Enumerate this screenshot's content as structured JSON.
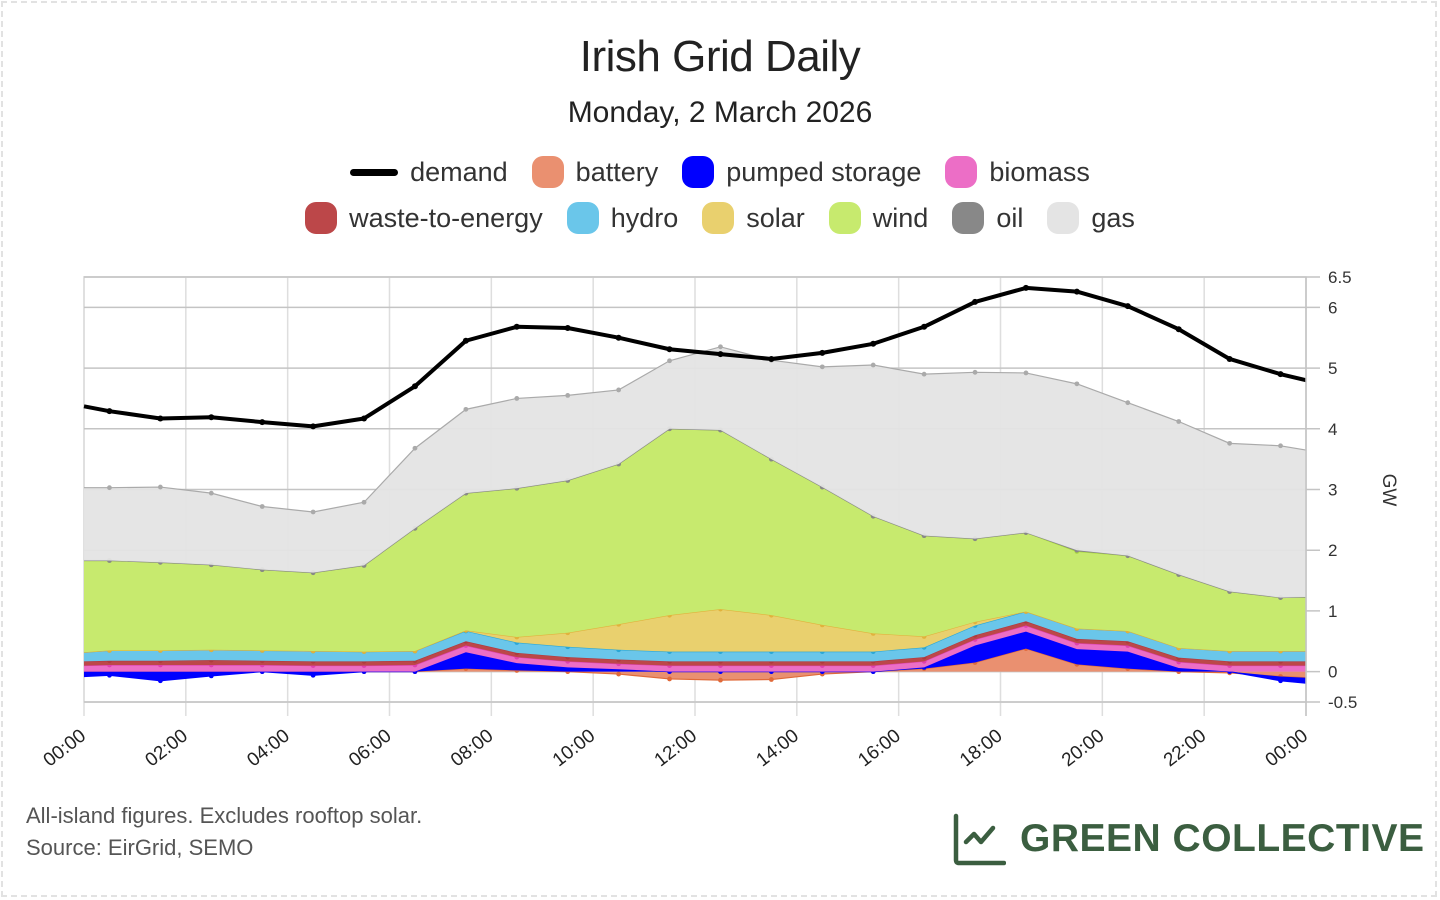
{
  "header": {
    "title": "Irish Grid Daily",
    "subtitle": "Monday, 2 March 2026"
  },
  "legend": {
    "row1": [
      {
        "key": "demand",
        "label": "demand",
        "color": "#000000",
        "style": "line"
      },
      {
        "key": "battery",
        "label": "battery",
        "color": "#ea9070"
      },
      {
        "key": "pumped_storage",
        "label": "pumped storage",
        "color": "#0000ff"
      },
      {
        "key": "biomass",
        "label": "biomass",
        "color": "#ec6ec6"
      }
    ],
    "row2": [
      {
        "key": "waste",
        "label": "waste-to-energy",
        "color": "#bc4749"
      },
      {
        "key": "hydro",
        "label": "hydro",
        "color": "#6ac6ea"
      },
      {
        "key": "solar",
        "label": "solar",
        "color": "#e9d06e"
      },
      {
        "key": "wind",
        "label": "wind",
        "color": "#c7ea6e"
      },
      {
        "key": "oil",
        "label": "oil",
        "color": "#888888"
      },
      {
        "key": "gas",
        "label": "gas",
        "color": "#e4e4e4"
      }
    ]
  },
  "footer": {
    "note": "All-island figures. Excludes rooftop solar.",
    "source": "Source: EirGrid, SEMO"
  },
  "brand": {
    "name": "GREEN COLLECTIVE",
    "icon": "line-chart-icon",
    "color": "#3b5e40"
  },
  "chart_data": {
    "type": "area",
    "stacked": true,
    "title": "Irish Grid Daily",
    "subtitle": "Monday, 2 March 2026",
    "xlabel": "",
    "ylabel": "GW",
    "ylim": [
      -0.5,
      6.5
    ],
    "yticks": [
      "6.5",
      "6",
      "5",
      "4",
      "3",
      "2",
      "1",
      "0",
      "-0.5"
    ],
    "ytick_values": [
      6.5,
      6,
      5,
      4,
      3,
      2,
      1,
      0,
      -0.5
    ],
    "xticks": [
      "00:00",
      "02:00",
      "04:00",
      "06:00",
      "08:00",
      "10:00",
      "12:00",
      "14:00",
      "16:00",
      "18:00",
      "20:00",
      "22:00",
      "00:00"
    ],
    "xtick_hours": [
      0,
      2,
      4,
      6,
      8,
      10,
      12,
      14,
      16,
      18,
      20,
      22,
      24
    ],
    "xlim_hours": [
      0,
      24
    ],
    "grid": true,
    "legend_position": "top",
    "y_axis_side": "right",
    "x_hours": [
      0,
      0.5,
      1.5,
      2.5,
      3.5,
      4.5,
      5.5,
      6.5,
      7.5,
      8.5,
      9.5,
      10.5,
      11.5,
      12.5,
      13.5,
      14.5,
      15.5,
      16.5,
      17.5,
      18.5,
      19.5,
      20.5,
      21.5,
      22.5,
      23.5,
      24
    ],
    "series": [
      {
        "name": "battery",
        "key": "battery",
        "color": "#ea9070",
        "values": [
          0.0,
          0.0,
          0.0,
          0.0,
          0.0,
          0.0,
          0.0,
          0.0,
          0.05,
          0.02,
          0.0,
          -0.04,
          -0.12,
          -0.14,
          -0.13,
          -0.04,
          0.0,
          0.05,
          0.15,
          0.38,
          0.12,
          0.05,
          0.0,
          -0.02,
          -0.08,
          -0.1
        ]
      },
      {
        "name": "pumped storage",
        "key": "pumped_storage",
        "color": "#0000ff",
        "values": [
          -0.08,
          -0.06,
          -0.15,
          -0.07,
          0.0,
          -0.06,
          0.0,
          0.0,
          0.27,
          0.12,
          0.07,
          0.04,
          0.0,
          0.0,
          0.0,
          0.0,
          0.0,
          0.02,
          0.28,
          0.28,
          0.25,
          0.28,
          0.06,
          0.0,
          -0.07,
          -0.09
        ]
      },
      {
        "name": "biomass",
        "key": "biomass",
        "color": "#ec6ec6",
        "values": [
          0.1,
          0.11,
          0.11,
          0.11,
          0.11,
          0.1,
          0.1,
          0.11,
          0.11,
          0.1,
          0.1,
          0.09,
          0.1,
          0.1,
          0.1,
          0.1,
          0.1,
          0.1,
          0.1,
          0.1,
          0.1,
          0.1,
          0.1,
          0.1,
          0.1,
          0.1
        ]
      },
      {
        "name": "waste-to-energy",
        "key": "waste",
        "color": "#bc4749",
        "values": [
          0.07,
          0.07,
          0.07,
          0.08,
          0.07,
          0.07,
          0.07,
          0.07,
          0.07,
          0.07,
          0.07,
          0.07,
          0.07,
          0.07,
          0.07,
          0.07,
          0.07,
          0.07,
          0.07,
          0.07,
          0.07,
          0.07,
          0.07,
          0.07,
          0.07,
          0.07
        ]
      },
      {
        "name": "hydro",
        "key": "hydro",
        "color": "#6ac6ea",
        "values": [
          0.15,
          0.17,
          0.17,
          0.17,
          0.17,
          0.17,
          0.16,
          0.16,
          0.17,
          0.17,
          0.17,
          0.16,
          0.16,
          0.16,
          0.16,
          0.16,
          0.16,
          0.16,
          0.16,
          0.16,
          0.17,
          0.17,
          0.16,
          0.17,
          0.17,
          0.17
        ]
      },
      {
        "name": "solar",
        "key": "solar",
        "color": "#e9d06e",
        "values": [
          0.0,
          0.0,
          0.0,
          0.0,
          0.0,
          0.0,
          0.0,
          0.0,
          0.01,
          0.09,
          0.23,
          0.42,
          0.6,
          0.7,
          0.6,
          0.44,
          0.3,
          0.18,
          0.06,
          0.0,
          0.0,
          0.0,
          0.0,
          0.0,
          0.0,
          0.0
        ]
      },
      {
        "name": "wind",
        "key": "wind",
        "color": "#c7ea6e",
        "values": [
          1.51,
          1.48,
          1.45,
          1.4,
          1.33,
          1.29,
          1.42,
          2.02,
          2.26,
          2.45,
          2.51,
          2.64,
          3.07,
          2.95,
          2.57,
          2.27,
          1.93,
          1.66,
          1.37,
          1.3,
          1.27,
          1.24,
          1.21,
          0.98,
          0.88,
          0.89
        ]
      },
      {
        "name": "oil",
        "key": "oil",
        "color": "#888888",
        "values": [
          0,
          0,
          0,
          0,
          0,
          0,
          0,
          0,
          0,
          0,
          0,
          0,
          0,
          0,
          0,
          0,
          0,
          0,
          0,
          0,
          0.02,
          0,
          0,
          0,
          0,
          0
        ]
      },
      {
        "name": "gas",
        "key": "gas",
        "color": "#e4e4e4",
        "values": [
          1.2,
          1.2,
          1.24,
          1.18,
          1.04,
          1.0,
          1.04,
          1.32,
          1.38,
          1.48,
          1.4,
          1.22,
          1.12,
          1.37,
          1.63,
          1.98,
          2.49,
          2.66,
          2.74,
          2.63,
          2.74,
          2.52,
          2.52,
          2.44,
          2.5,
          2.42
        ]
      },
      {
        "name": "demand",
        "key": "demand",
        "color": "#000000",
        "style": "line",
        "values": [
          4.37,
          4.29,
          4.17,
          4.19,
          4.11,
          4.04,
          4.17,
          4.7,
          5.45,
          5.68,
          5.66,
          5.5,
          5.31,
          5.23,
          5.15,
          5.25,
          5.4,
          5.68,
          6.09,
          6.32,
          6.26,
          6.02,
          5.64,
          5.15,
          4.9,
          4.8
        ]
      }
    ]
  }
}
